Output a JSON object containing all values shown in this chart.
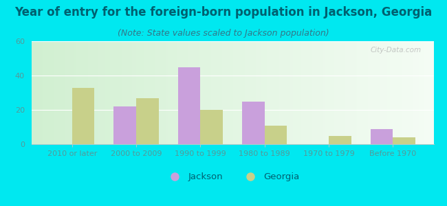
{
  "title": "Year of entry for the foreign-born population in Jackson, Georgia",
  "subtitle": "(Note: State values scaled to Jackson population)",
  "categories": [
    "2010 or later",
    "2000 to 2009",
    "1990 to 1999",
    "1980 to 1989",
    "1970 to 1979",
    "Before 1970"
  ],
  "jackson_values": [
    0,
    22,
    45,
    25,
    0,
    9
  ],
  "georgia_values": [
    33,
    27,
    20,
    11,
    5,
    4
  ],
  "jackson_color": "#c9a0dc",
  "georgia_color": "#c8d08a",
  "ylim": [
    0,
    60
  ],
  "yticks": [
    0,
    20,
    40,
    60
  ],
  "background_outer": "#00e8f0",
  "legend_jackson_label": "Jackson",
  "legend_georgia_label": "Georgia",
  "title_fontsize": 12,
  "title_color": "#006070",
  "subtitle_fontsize": 9,
  "subtitle_color": "#337788",
  "tick_fontsize": 8,
  "tick_color": "#559999",
  "watermark": "City-Data.com",
  "bar_width": 0.35
}
